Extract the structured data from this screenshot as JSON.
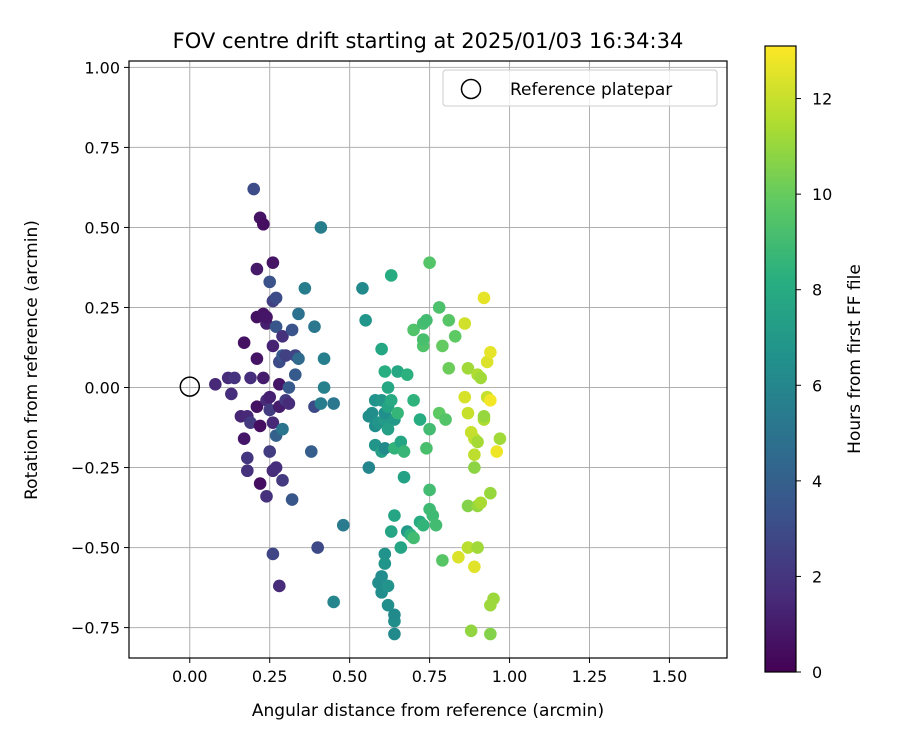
{
  "chart_data": {
    "type": "scatter",
    "title": "FOV centre drift starting at 2025/01/03 16:34:34",
    "xlabel": "Angular distance from reference (arcmin)",
    "ylabel": "Rotation from reference (arcmin)",
    "xlim": [
      -0.19,
      1.68
    ],
    "ylim": [
      -0.845,
      1.02
    ],
    "x_ticks": [
      "0.00",
      "0.25",
      "0.50",
      "0.75",
      "1.00",
      "1.25",
      "1.50"
    ],
    "y_ticks": [
      "-0.75",
      "-0.50",
      "-0.25",
      "0.00",
      "0.25",
      "0.50",
      "0.75",
      "1.00"
    ],
    "grid": true,
    "legend": {
      "position": "top-right",
      "entries": [
        "Reference platepar"
      ]
    },
    "reference_point": {
      "x": 0.0,
      "y": 0.0,
      "label": "Reference platepar"
    },
    "colorbar": {
      "label": "Hours from first FF file",
      "min": 0,
      "max": 13.1,
      "ticks": [
        "0",
        "2",
        "4",
        "6",
        "8",
        "10",
        "12"
      ],
      "colormap": "viridis"
    },
    "points": [
      [
        0.08,
        0.01,
        1.5
      ],
      [
        0.12,
        0.03,
        1.6
      ],
      [
        0.13,
        -0.02,
        1.7
      ],
      [
        0.14,
        0.03,
        1.9
      ],
      [
        0.16,
        -0.09,
        1.4
      ],
      [
        0.17,
        -0.16,
        0.8
      ],
      [
        0.17,
        0.14,
        0.6
      ],
      [
        0.18,
        -0.22,
        2.0
      ],
      [
        0.18,
        -0.26,
        1.8
      ],
      [
        0.18,
        -0.09,
        1.5
      ],
      [
        0.19,
        -0.11,
        2.2
      ],
      [
        0.19,
        0.03,
        1.7
      ],
      [
        0.2,
        0.62,
        3.0
      ],
      [
        0.21,
        0.09,
        0.7
      ],
      [
        0.21,
        0.22,
        0.6
      ],
      [
        0.21,
        0.37,
        0.9
      ],
      [
        0.21,
        -0.06,
        0.6
      ],
      [
        0.22,
        0.53,
        0.7
      ],
      [
        0.22,
        -0.3,
        0.5
      ],
      [
        0.22,
        -0.12,
        0.5
      ],
      [
        0.23,
        0.23,
        0.7
      ],
      [
        0.23,
        0.03,
        1.0
      ],
      [
        0.23,
        0.51,
        0.5
      ],
      [
        0.24,
        -0.34,
        1.8
      ],
      [
        0.24,
        0.2,
        1.1
      ],
      [
        0.24,
        -0.04,
        1.6
      ],
      [
        0.24,
        0.22,
        0.8
      ],
      [
        0.25,
        -0.03,
        1.2
      ],
      [
        0.25,
        0.33,
        3.3
      ],
      [
        0.25,
        -0.07,
        2.3
      ],
      [
        0.25,
        -0.2,
        2.3
      ],
      [
        0.26,
        -0.26,
        1.6
      ],
      [
        0.26,
        0.39,
        0.7
      ],
      [
        0.26,
        -0.52,
        2.7
      ],
      [
        0.26,
        0.27,
        2.5
      ],
      [
        0.26,
        -0.11,
        1.5
      ],
      [
        0.26,
        0.13,
        1.3
      ],
      [
        0.27,
        0.28,
        3.0
      ],
      [
        0.27,
        0.19,
        3.5
      ],
      [
        0.27,
        -0.15,
        4.0
      ],
      [
        0.27,
        -0.25,
        1.7
      ],
      [
        0.28,
        0.01,
        0.8
      ],
      [
        0.28,
        -0.62,
        1.6
      ],
      [
        0.28,
        0.08,
        3.0
      ],
      [
        0.28,
        -0.06,
        1.0
      ],
      [
        0.29,
        -0.13,
        5.0
      ],
      [
        0.29,
        0.16,
        1.8
      ],
      [
        0.29,
        -0.29,
        2.2
      ],
      [
        0.29,
        0.1,
        3.7
      ],
      [
        0.3,
        0.1,
        2.5
      ],
      [
        0.3,
        -0.04,
        2.2
      ],
      [
        0.31,
        -0.05,
        1.6
      ],
      [
        0.31,
        0.0,
        3.7
      ],
      [
        0.32,
        -0.35,
        3.5
      ],
      [
        0.32,
        0.18,
        3.4
      ],
      [
        0.33,
        0.04,
        3.7
      ],
      [
        0.33,
        0.1,
        2.7
      ],
      [
        0.34,
        0.09,
        4.5
      ],
      [
        0.34,
        0.23,
        4.9
      ],
      [
        0.36,
        0.31,
        5.5
      ],
      [
        0.38,
        -0.2,
        3.9
      ],
      [
        0.39,
        0.19,
        5.2
      ],
      [
        0.39,
        -0.06,
        2.9
      ],
      [
        0.4,
        -0.5,
        2.9
      ],
      [
        0.41,
        0.5,
        5.5
      ],
      [
        0.41,
        -0.05,
        5.5
      ],
      [
        0.42,
        0.0,
        5.7
      ],
      [
        0.42,
        0.09,
        5.6
      ],
      [
        0.45,
        -0.67,
        5.9
      ],
      [
        0.45,
        -0.05,
        5.2
      ],
      [
        0.48,
        -0.43,
        5.4
      ],
      [
        0.54,
        0.31,
        6.2
      ],
      [
        0.55,
        0.21,
        6.8
      ],
      [
        0.56,
        -0.25,
        5.9
      ],
      [
        0.56,
        -0.09,
        6.4
      ],
      [
        0.57,
        -0.08,
        6.4
      ],
      [
        0.58,
        -0.04,
        6.6
      ],
      [
        0.58,
        -0.12,
        6.4
      ],
      [
        0.58,
        -0.18,
        6.8
      ],
      [
        0.59,
        -0.61,
        6.3
      ],
      [
        0.59,
        -0.11,
        6.8
      ],
      [
        0.6,
        0.12,
        7.8
      ],
      [
        0.6,
        -0.2,
        7.4
      ],
      [
        0.6,
        -0.04,
        6.9
      ],
      [
        0.6,
        -0.59,
        6.3
      ],
      [
        0.6,
        -0.64,
        6.4
      ],
      [
        0.61,
        -0.52,
        6.6
      ],
      [
        0.61,
        0.05,
        8.2
      ],
      [
        0.61,
        -0.1,
        7.1
      ],
      [
        0.61,
        -0.08,
        6.5
      ],
      [
        0.61,
        -0.55,
        6.8
      ],
      [
        0.61,
        -0.19,
        6.2
      ],
      [
        0.62,
        -0.62,
        6.7
      ],
      [
        0.62,
        -0.68,
        6.4
      ],
      [
        0.62,
        0.0,
        7.8
      ],
      [
        0.62,
        -0.06,
        7.6
      ],
      [
        0.62,
        -0.13,
        7.4
      ],
      [
        0.63,
        -0.45,
        7.7
      ],
      [
        0.63,
        0.35,
        8.0
      ],
      [
        0.63,
        -0.04,
        7.9
      ],
      [
        0.64,
        -0.77,
        6.2
      ],
      [
        0.64,
        -0.1,
        7.0
      ],
      [
        0.64,
        -0.73,
        6.4
      ],
      [
        0.64,
        -0.4,
        7.7
      ],
      [
        0.64,
        -0.19,
        8.5
      ],
      [
        0.64,
        -0.71,
        6.2
      ],
      [
        0.65,
        0.05,
        7.8
      ],
      [
        0.65,
        -0.08,
        8.6
      ],
      [
        0.66,
        -0.5,
        7.7
      ],
      [
        0.66,
        -0.17,
        7.7
      ],
      [
        0.67,
        -0.2,
        8.7
      ],
      [
        0.67,
        -0.28,
        7.5
      ],
      [
        0.68,
        0.04,
        8.3
      ],
      [
        0.68,
        -0.45,
        7.0
      ],
      [
        0.69,
        -0.46,
        8.3
      ],
      [
        0.7,
        -0.47,
        9.0
      ],
      [
        0.7,
        -0.04,
        8.4
      ],
      [
        0.7,
        0.18,
        9.4
      ],
      [
        0.72,
        -0.42,
        8.0
      ],
      [
        0.72,
        -0.1,
        8.0
      ],
      [
        0.73,
        0.13,
        9.4
      ],
      [
        0.73,
        0.15,
        9.2
      ],
      [
        0.73,
        -0.43,
        8.5
      ],
      [
        0.73,
        0.2,
        9.1
      ],
      [
        0.74,
        0.21,
        9.0
      ],
      [
        0.74,
        -0.19,
        9.2
      ],
      [
        0.75,
        -0.32,
        9.0
      ],
      [
        0.75,
        0.39,
        9.5
      ],
      [
        0.75,
        -0.38,
        8.9
      ],
      [
        0.75,
        -0.13,
        9.0
      ],
      [
        0.76,
        -0.4,
        8.9
      ],
      [
        0.77,
        -0.43,
        9.0
      ],
      [
        0.78,
        0.25,
        9.3
      ],
      [
        0.78,
        -0.08,
        9.8
      ],
      [
        0.79,
        0.13,
        9.9
      ],
      [
        0.79,
        -0.54,
        9.6
      ],
      [
        0.8,
        -0.1,
        9.5
      ],
      [
        0.81,
        0.21,
        9.6
      ],
      [
        0.81,
        0.06,
        10.1
      ],
      [
        0.83,
        0.16,
        9.8
      ],
      [
        0.84,
        -0.53,
        12.4
      ],
      [
        0.86,
        -0.03,
        12.3
      ],
      [
        0.86,
        0.2,
        12.2
      ],
      [
        0.87,
        -0.08,
        12.0
      ],
      [
        0.87,
        0.06,
        11.2
      ],
      [
        0.87,
        -0.5,
        11.7
      ],
      [
        0.87,
        -0.37,
        10.6
      ],
      [
        0.88,
        -0.76,
        10.9
      ],
      [
        0.88,
        -0.14,
        12.0
      ],
      [
        0.89,
        -0.16,
        11.9
      ],
      [
        0.89,
        -0.56,
        12.5
      ],
      [
        0.89,
        -0.21,
        11.8
      ],
      [
        0.89,
        -0.25,
        10.8
      ],
      [
        0.9,
        0.04,
        11.5
      ],
      [
        0.9,
        -0.37,
        11.0
      ],
      [
        0.9,
        -0.17,
        11.3
      ],
      [
        0.9,
        -0.5,
        11.2
      ],
      [
        0.91,
        0.03,
        11.2
      ],
      [
        0.91,
        -0.36,
        11.4
      ],
      [
        0.92,
        -0.1,
        11.5
      ],
      [
        0.92,
        0.28,
        12.6
      ],
      [
        0.92,
        -0.09,
        11.0
      ],
      [
        0.93,
        0.08,
        12.4
      ],
      [
        0.93,
        -0.03,
        12.0
      ],
      [
        0.94,
        0.11,
        12.6
      ],
      [
        0.94,
        -0.77,
        10.6
      ],
      [
        0.94,
        -0.04,
        12.9
      ],
      [
        0.94,
        -0.33,
        11.0
      ],
      [
        0.94,
        -0.68,
        11.1
      ],
      [
        0.95,
        -0.66,
        11.1
      ],
      [
        0.96,
        -0.2,
        12.8
      ],
      [
        0.97,
        -0.16,
        11.2
      ]
    ]
  }
}
